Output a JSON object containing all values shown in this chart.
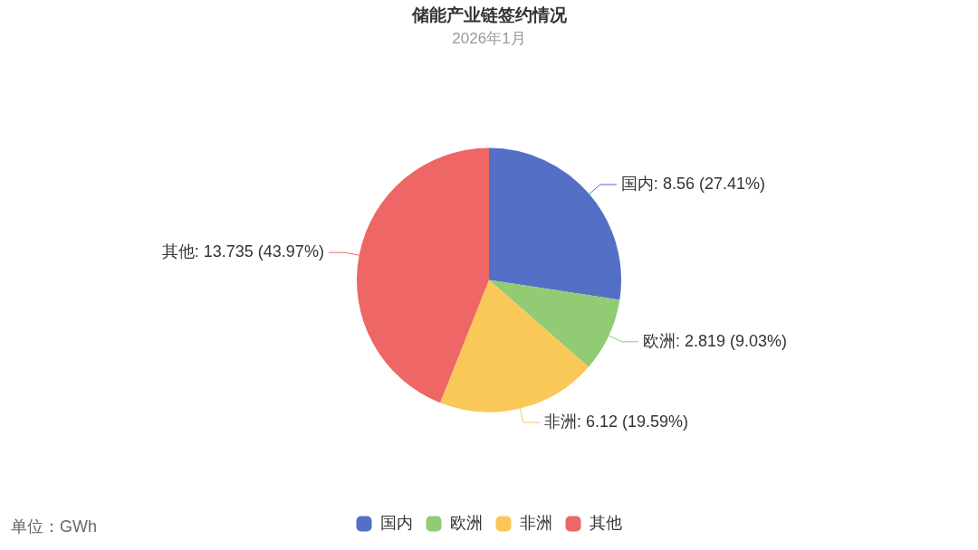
{
  "chart_data": {
    "type": "pie",
    "title": "储能产业链签约情况",
    "subtitle": "2026年1月",
    "categories": [
      "国内",
      "欧洲",
      "非洲",
      "其他"
    ],
    "values": [
      8.56,
      2.819,
      6.12,
      13.735
    ],
    "colors": [
      "#5470c6",
      "#91cc75",
      "#fac858",
      "#ee6666"
    ],
    "value_labels": [
      "国内: 8.56 (27.41%)",
      "欧洲: 2.819 (9.03%)",
      "非洲: 6.12 (19.59%)",
      "其他: 13.735 (43.97%)"
    ],
    "legend": "bottom",
    "annotations": [
      "单位：GWh"
    ]
  }
}
